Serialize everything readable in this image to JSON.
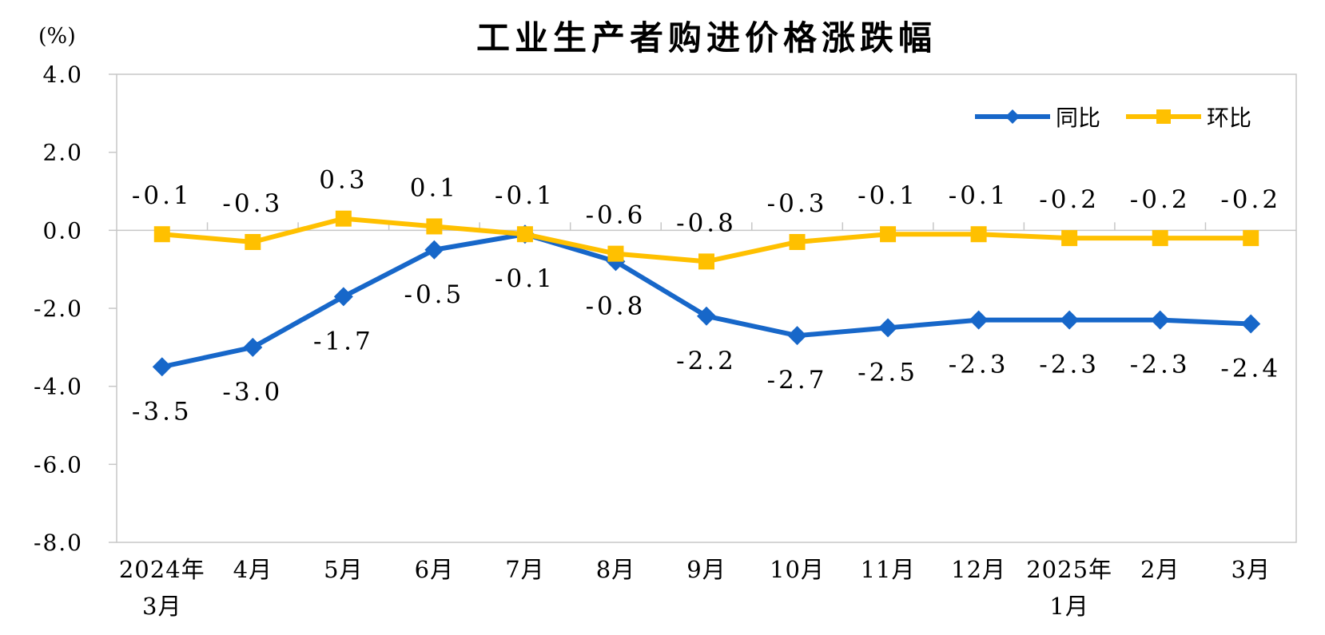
{
  "page": {
    "background": "#ffffff"
  },
  "chart_data": {
    "type": "line",
    "title": "工业生产者购进价格涨跌幅",
    "unit_label": "(%)",
    "categories": [
      "2024年\n3月",
      "4月",
      "5月",
      "6月",
      "7月",
      "8月",
      "9月",
      "10月",
      "11月",
      "12月",
      "2025年\n1月",
      "2月",
      "3月"
    ],
    "y_axis": {
      "min": -8.0,
      "max": 4.0,
      "step": 2.0,
      "tick_labels": [
        "4.0",
        "2.0",
        "0.0",
        "-2.0",
        "-4.0",
        "-6.0",
        "-8.0"
      ]
    },
    "grid": "zero-baseline-only",
    "legend_position": "top-right-inside",
    "axis_color": "#c7c7c7",
    "series": [
      {
        "id": "yoy",
        "name": "同比",
        "color": "#1767C9",
        "marker": "diamond",
        "label_position": "below",
        "values": [
          -3.5,
          -3.0,
          -1.7,
          -0.5,
          -0.1,
          -0.8,
          -2.2,
          -2.7,
          -2.5,
          -2.3,
          -2.3,
          -2.3,
          -2.4
        ]
      },
      {
        "id": "mom",
        "name": "环比",
        "color": "#FFC000",
        "marker": "square",
        "label_position": "above",
        "values": [
          -0.1,
          -0.3,
          0.3,
          0.1,
          -0.1,
          -0.6,
          -0.8,
          -0.3,
          -0.1,
          -0.1,
          -0.2,
          -0.2,
          -0.2
        ]
      }
    ]
  }
}
